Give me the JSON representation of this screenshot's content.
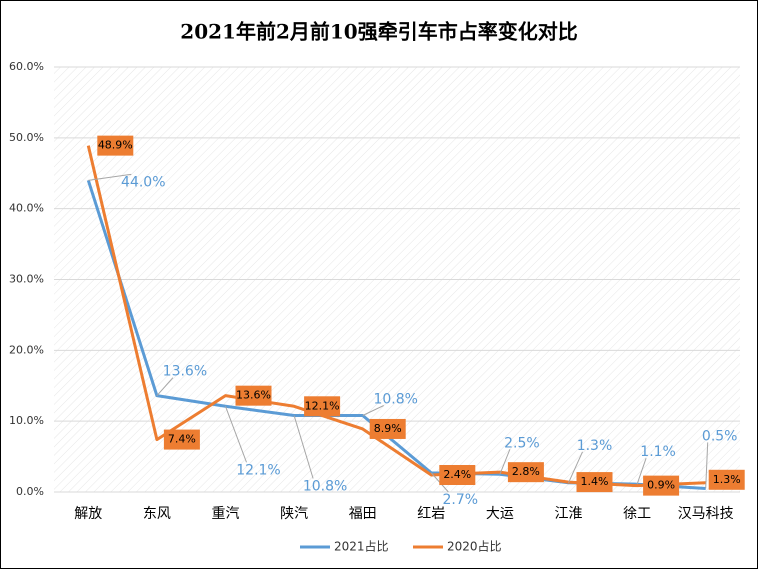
{
  "chart_data": {
    "type": "line",
    "title": "2021年前2月前10强牵引车市占率变化对比",
    "categories": [
      "解放",
      "东风",
      "重汽",
      "陕汽",
      "福田",
      "红岩",
      "大运",
      "江淮",
      "徐工",
      "汉马科技"
    ],
    "series": [
      {
        "name": "2021占比",
        "color": "#5b9bd5",
        "values": [
          44.0,
          13.6,
          12.1,
          10.8,
          10.8,
          2.7,
          2.5,
          1.3,
          1.1,
          0.5
        ],
        "value_labels": [
          "44.0%",
          "13.6%",
          "12.1%",
          "10.8%",
          "10.8%",
          "2.7%",
          "2.5%",
          "1.3%",
          "1.1%",
          "0.5%"
        ]
      },
      {
        "name": "2020占比",
        "color": "#ed7d31",
        "values": [
          48.9,
          7.4,
          13.6,
          12.1,
          8.9,
          2.4,
          2.8,
          1.4,
          0.9,
          1.3
        ],
        "value_labels": [
          "48.9%",
          "7.4%",
          "13.6%",
          "12.1%",
          "8.9%",
          "2.4%",
          "2.8%",
          "1.4%",
          "0.9%",
          "1.3%"
        ]
      }
    ],
    "ylim": [
      0,
      60
    ],
    "yticks": [
      {
        "value": 0,
        "label": "0.0%"
      },
      {
        "value": 10,
        "label": "10.0%"
      },
      {
        "value": 20,
        "label": "20.0%"
      },
      {
        "value": 30,
        "label": "30.0%"
      },
      {
        "value": 40,
        "label": "40.0%"
      },
      {
        "value": 50,
        "label": "50.0%"
      },
      {
        "value": 60,
        "label": "60.0%"
      }
    ],
    "grid": true,
    "legend": "bottom"
  }
}
